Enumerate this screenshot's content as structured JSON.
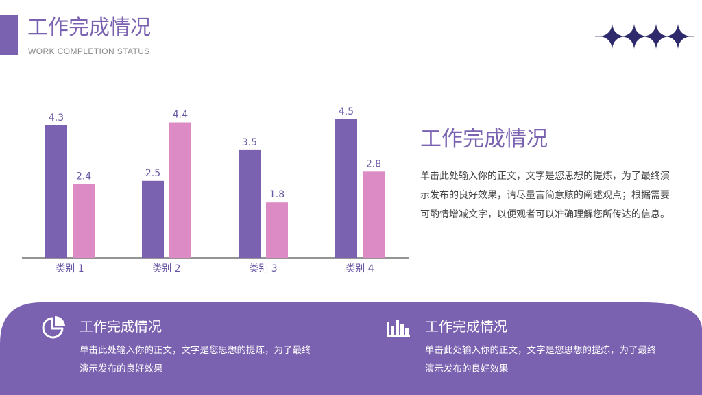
{
  "header": {
    "title": "工作完成情况",
    "subtitle": "WORK COMPLETION STATUS"
  },
  "colors": {
    "purple": "#7b62b1",
    "pink": "#dc8bc4",
    "text_dark": "#444444",
    "text_gray": "#8a8a8a"
  },
  "chart_data": {
    "type": "bar",
    "categories": [
      "类别 1",
      "类别 2",
      "类别 3",
      "类别 4"
    ],
    "series": [
      {
        "values": [
          4.3,
          2.5,
          3.5,
          4.5
        ],
        "color": "#7b62b1"
      },
      {
        "values": [
          2.4,
          4.4,
          1.8,
          2.8
        ],
        "color": "#dc8bc4"
      }
    ],
    "ylim": [
      0,
      5
    ],
    "grid": false,
    "data_labels": true,
    "title": "",
    "xlabel": "",
    "ylabel": ""
  },
  "side": {
    "title": "工作完成情况",
    "body": "单击此处输入你的正文，文字是您思想的提炼，为了最终演示发布的良好效果，请尽量言简意赅的阐述观点；根据需要可酌情增减文字，以便观者可以准确理解您所传达的信息。"
  },
  "features": [
    {
      "icon": "pie-chart-icon",
      "title": "工作完成情况",
      "body": "单击此处输入你的正文，文字是您思想的提炼，为了最终演示发布的良好效果"
    },
    {
      "icon": "bar-chart-icon",
      "title": "工作完成情况",
      "body": "单击此处输入你的正文，文字是您思想的提炼，为了最终演示发布的良好效果"
    }
  ]
}
